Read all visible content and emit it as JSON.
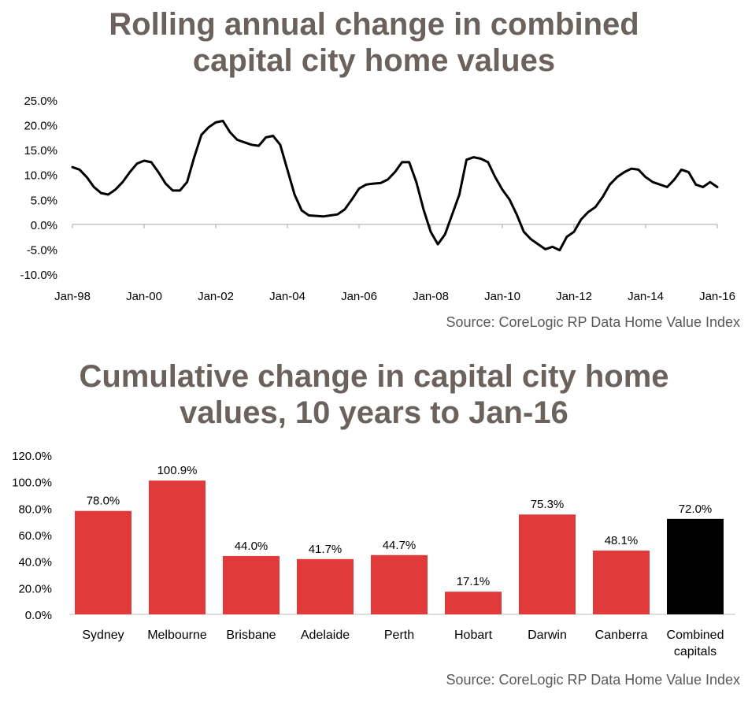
{
  "chart_data": [
    {
      "type": "line",
      "title_lines": [
        "Rolling annual change in combined",
        "capital city home values"
      ],
      "source": "Source: CoreLogic RP Data Home Value Index",
      "ylim": [
        -10,
        25
      ],
      "yticks": [
        "25.0%",
        "20.0%",
        "15.0%",
        "10.0%",
        "5.0%",
        "0.0%",
        "-5.0%",
        "-10.0%"
      ],
      "ytick_values": [
        25,
        20,
        15,
        10,
        5,
        0,
        -5,
        -10
      ],
      "xticks": [
        "Jan-98",
        "Jan-00",
        "Jan-02",
        "Jan-04",
        "Jan-06",
        "Jan-08",
        "Jan-10",
        "Jan-12",
        "Jan-14",
        "Jan-16"
      ],
      "xtick_years": [
        1998,
        2000,
        2002,
        2004,
        2006,
        2008,
        2010,
        2012,
        2014,
        2016
      ],
      "xlim": [
        1998,
        2016
      ],
      "grid": false,
      "color": "#000000",
      "series": [
        {
          "x": [
            1998.0,
            1998.2,
            1998.4,
            1998.6,
            1998.8,
            1999.0,
            1999.2,
            1999.4,
            1999.6,
            1999.8,
            2000.0,
            2000.2,
            2000.4,
            2000.6,
            2000.8,
            2001.0,
            2001.2,
            2001.4,
            2001.6,
            2001.8,
            2002.0,
            2002.2,
            2002.4,
            2002.6,
            2002.8,
            2003.0,
            2003.2,
            2003.4,
            2003.6,
            2003.8,
            2004.0,
            2004.2,
            2004.4,
            2004.6,
            2004.8,
            2005.0,
            2005.2,
            2005.4,
            2005.6,
            2005.8,
            2006.0,
            2006.2,
            2006.4,
            2006.6,
            2006.8,
            2007.0,
            2007.2,
            2007.4,
            2007.6,
            2007.8,
            2008.0,
            2008.2,
            2008.4,
            2008.6,
            2008.8,
            2009.0,
            2009.2,
            2009.4,
            2009.6,
            2009.8,
            2010.0,
            2010.2,
            2010.4,
            2010.6,
            2010.8,
            2011.0,
            2011.2,
            2011.4,
            2011.6,
            2011.8,
            2012.0,
            2012.2,
            2012.4,
            2012.6,
            2012.8,
            2013.0,
            2013.2,
            2013.4,
            2013.6,
            2013.8,
            2014.0,
            2014.2,
            2014.4,
            2014.6,
            2014.8,
            2015.0,
            2015.2,
            2015.4,
            2015.6,
            2015.8,
            2016.0
          ],
          "y": [
            11.5,
            11.0,
            9.5,
            7.5,
            6.3,
            6.0,
            7.0,
            8.5,
            10.5,
            12.2,
            12.8,
            12.5,
            10.5,
            8.2,
            6.8,
            6.8,
            8.5,
            13.5,
            18.0,
            19.5,
            20.5,
            20.8,
            18.5,
            17.0,
            16.5,
            16.0,
            15.8,
            17.5,
            17.8,
            16.0,
            11.0,
            6.0,
            2.8,
            1.8,
            1.7,
            1.6,
            1.8,
            2.0,
            3.0,
            5.0,
            7.2,
            8.0,
            8.2,
            8.3,
            9.0,
            10.5,
            12.5,
            12.5,
            8.5,
            3.0,
            -1.5,
            -4.0,
            -2.0,
            2.0,
            6.0,
            13.0,
            13.5,
            13.2,
            12.5,
            9.5,
            7.0,
            5.0,
            2.0,
            -1.5,
            -3.0,
            -4.0,
            -5.0,
            -4.5,
            -5.2,
            -2.5,
            -1.5,
            1.0,
            2.5,
            3.5,
            5.5,
            8.0,
            9.5,
            10.5,
            11.2,
            11.0,
            9.5,
            8.5,
            8.0,
            7.5,
            9.0,
            11.0,
            10.5,
            8.0,
            7.5,
            8.5,
            7.5
          ],
          "x_extra_note": ""
        }
      ]
    },
    {
      "type": "bar",
      "title_lines": [
        "Cumulative change in capital city home",
        "values, 10 years to Jan-16"
      ],
      "source": "Source: CoreLogic RP Data Home Value Index",
      "categories": [
        "Sydney",
        "Melbourne",
        "Brisbane",
        "Adelaide",
        "Perth",
        "Hobart",
        "Darwin",
        "Canberra",
        "Combined capitals"
      ],
      "category_lines": [
        [
          "Sydney"
        ],
        [
          "Melbourne"
        ],
        [
          "Brisbane"
        ],
        [
          "Adelaide"
        ],
        [
          "Perth"
        ],
        [
          "Hobart"
        ],
        [
          "Darwin"
        ],
        [
          "Canberra"
        ],
        [
          "Combined",
          "capitals"
        ]
      ],
      "values": [
        78.0,
        100.9,
        44.0,
        41.7,
        44.7,
        17.1,
        75.3,
        48.1,
        72.0
      ],
      "value_labels": [
        "78.0%",
        "100.9%",
        "44.0%",
        "41.7%",
        "44.7%",
        "17.1%",
        "75.3%",
        "48.1%",
        "72.0%"
      ],
      "colors": [
        "#e03a3a",
        "#e03a3a",
        "#e03a3a",
        "#e03a3a",
        "#e03a3a",
        "#e03a3a",
        "#e03a3a",
        "#e03a3a",
        "#000000"
      ],
      "ylim": [
        0,
        120
      ],
      "yticks": [
        "120.0%",
        "100.0%",
        "80.0%",
        "60.0%",
        "40.0%",
        "20.0%",
        "0.0%"
      ],
      "ytick_values": [
        120,
        100,
        80,
        60,
        40,
        20,
        0
      ],
      "grid": false
    }
  ]
}
